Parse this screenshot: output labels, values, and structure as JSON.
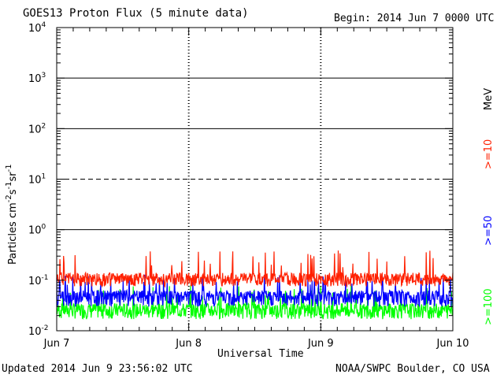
{
  "header": {
    "title": "GOES13 Proton Flux (5 minute data)",
    "begin": "Begin: 2014 Jun 7 0000 UTC"
  },
  "footer": {
    "updated": "Updated 2014 Jun  9 23:56:02 UTC",
    "credit": "NOAA/SWPC Boulder, CO USA"
  },
  "chart_data": {
    "type": "line",
    "title": "GOES13 Proton Flux (5 minute data)",
    "xlabel": "Universal Time",
    "ylabel": "Particles cm⁻²s⁻¹sr⁻¹",
    "ylabel_parts": {
      "main": "Particles cm",
      "e1": "-2",
      "s": "s",
      "e2": "-1",
      "sr": "sr",
      "e3": "-1"
    },
    "y_scale": "log",
    "ylim": [
      0.01,
      10000
    ],
    "y_ticks": [
      {
        "base": "10",
        "exp": "-2"
      },
      {
        "base": "10",
        "exp": "-1"
      },
      {
        "base": "10",
        "exp": "0"
      },
      {
        "base": "10",
        "exp": "1"
      },
      {
        "base": "10",
        "exp": "2"
      },
      {
        "base": "10",
        "exp": "3"
      },
      {
        "base": "10",
        "exp": "4"
      }
    ],
    "x_categories": [
      "Jun 7",
      "Jun 8",
      "Jun 9",
      "Jun 10"
    ],
    "xlim_days": [
      0,
      3
    ],
    "threshold_lines": [
      1,
      10,
      100,
      1000
    ],
    "threshold_dashed": [
      10,
      0.1
    ],
    "energy_unit": "MeV",
    "series": [
      {
        "name": ">=10",
        "color": "#ff2000",
        "baseline": 0.1,
        "low": 0.075,
        "high": 0.4
      },
      {
        "name": ">=50",
        "color": "#0000ff",
        "baseline": 0.045,
        "low": 0.03,
        "high": 0.13
      },
      {
        "name": ">=100",
        "color": "#00ff00",
        "baseline": 0.025,
        "low": 0.017,
        "high": 0.08
      }
    ]
  }
}
